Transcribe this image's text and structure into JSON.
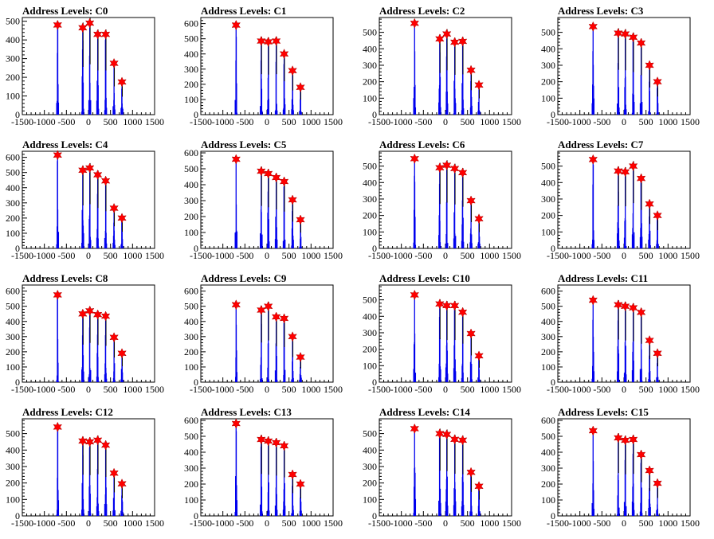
{
  "chart_data": [
    {
      "title": "Address Levels: C0",
      "type": "bar",
      "xlim": [
        -1500,
        1500
      ],
      "ylim": [
        0,
        520
      ],
      "xticks": [
        -1500,
        -1000,
        -500,
        0,
        500,
        1000,
        1500
      ],
      "xtick_labels": [
        "-1500",
        "-1000",
        "-500",
        "0",
        "500",
        "1000",
        "1500"
      ],
      "yticks": [
        0,
        100,
        200,
        300,
        400,
        500
      ],
      "ytick_labels": [
        "0",
        "100",
        "200",
        "300",
        "400",
        "500"
      ],
      "peaks": [
        {
          "x": -700,
          "y": 480
        },
        {
          "x": -130,
          "y": 465
        },
        {
          "x": 30,
          "y": 490
        },
        {
          "x": 210,
          "y": 430
        },
        {
          "x": 390,
          "y": 430
        },
        {
          "x": 580,
          "y": 275
        },
        {
          "x": 760,
          "y": 175
        }
      ]
    },
    {
      "title": "Address Levels: C1",
      "type": "bar",
      "xlim": [
        -1500,
        1500
      ],
      "ylim": [
        0,
        640
      ],
      "xticks": [
        -1500,
        -1000,
        -500,
        0,
        500,
        1000,
        1500
      ],
      "xtick_labels": [
        "-1500",
        "-1000",
        "-500",
        "0",
        "500",
        "1000",
        "1500"
      ],
      "yticks": [
        0,
        100,
        200,
        300,
        400,
        500,
        600
      ],
      "ytick_labels": [
        "0",
        "100",
        "200",
        "300",
        "400",
        "500",
        "600"
      ],
      "peaks": [
        {
          "x": -700,
          "y": 590
        },
        {
          "x": -130,
          "y": 485
        },
        {
          "x": 30,
          "y": 480
        },
        {
          "x": 210,
          "y": 485
        },
        {
          "x": 390,
          "y": 400
        },
        {
          "x": 580,
          "y": 290
        },
        {
          "x": 760,
          "y": 180
        }
      ]
    },
    {
      "title": "Address Levels: C2",
      "type": "bar",
      "xlim": [
        -1500,
        1500
      ],
      "ylim": [
        0,
        590
      ],
      "xticks": [
        -1500,
        -1000,
        -500,
        0,
        500,
        1000,
        1500
      ],
      "xtick_labels": [
        "-1500",
        "-1000",
        "-500",
        "0",
        "500",
        "1000",
        "1500"
      ],
      "yticks": [
        0,
        100,
        200,
        300,
        400,
        500
      ],
      "ytick_labels": [
        "0",
        "100",
        "200",
        "300",
        "400",
        "500"
      ],
      "peaks": [
        {
          "x": -700,
          "y": 555
        },
        {
          "x": -130,
          "y": 460
        },
        {
          "x": 30,
          "y": 490
        },
        {
          "x": 210,
          "y": 440
        },
        {
          "x": 390,
          "y": 445
        },
        {
          "x": 580,
          "y": 270
        },
        {
          "x": 760,
          "y": 180
        }
      ]
    },
    {
      "title": "Address Levels: C3",
      "type": "bar",
      "xlim": [
        -1500,
        1500
      ],
      "ylim": [
        0,
        590
      ],
      "xticks": [
        -1500,
        -1000,
        -500,
        0,
        500,
        1000,
        1500
      ],
      "xtick_labels": [
        "-1500",
        "-1000",
        "-500",
        "0",
        "500",
        "1000",
        "1500"
      ],
      "yticks": [
        0,
        100,
        200,
        300,
        400,
        500
      ],
      "ytick_labels": [
        "0",
        "100",
        "200",
        "300",
        "400",
        "500"
      ],
      "peaks": [
        {
          "x": -700,
          "y": 535
        },
        {
          "x": -130,
          "y": 495
        },
        {
          "x": 30,
          "y": 490
        },
        {
          "x": 210,
          "y": 470
        },
        {
          "x": 390,
          "y": 435
        },
        {
          "x": 580,
          "y": 300
        },
        {
          "x": 760,
          "y": 200
        }
      ]
    },
    {
      "title": "Address Levels: C4",
      "type": "bar",
      "xlim": [
        -1500,
        1500
      ],
      "ylim": [
        0,
        640
      ],
      "xticks": [
        -1500,
        -1000,
        -500,
        0,
        500,
        1000,
        1500
      ],
      "xtick_labels": [
        "-1500",
        "-1000",
        "-500",
        "0",
        "500",
        "1000",
        "1500"
      ],
      "yticks": [
        0,
        100,
        200,
        300,
        400,
        500,
        600
      ],
      "ytick_labels": [
        "0",
        "100",
        "200",
        "300",
        "400",
        "500",
        "600"
      ],
      "peaks": [
        {
          "x": -700,
          "y": 615
        },
        {
          "x": -130,
          "y": 515
        },
        {
          "x": 30,
          "y": 530
        },
        {
          "x": 210,
          "y": 485
        },
        {
          "x": 390,
          "y": 445
        },
        {
          "x": 580,
          "y": 265
        },
        {
          "x": 760,
          "y": 200
        }
      ]
    },
    {
      "title": "Address Levels: C5",
      "type": "bar",
      "xlim": [
        -1500,
        1500
      ],
      "ylim": [
        0,
        610
      ],
      "xticks": [
        -1500,
        -1000,
        -500,
        0,
        500,
        1000,
        1500
      ],
      "xtick_labels": [
        "-1500",
        "-1000",
        "-500",
        "0",
        "500",
        "1000",
        "1500"
      ],
      "yticks": [
        0,
        100,
        200,
        300,
        400,
        500,
        600
      ],
      "ytick_labels": [
        "0",
        "100",
        "200",
        "300",
        "400",
        "500",
        "600"
      ],
      "peaks": [
        {
          "x": -700,
          "y": 560
        },
        {
          "x": -130,
          "y": 485
        },
        {
          "x": 30,
          "y": 470
        },
        {
          "x": 210,
          "y": 445
        },
        {
          "x": 390,
          "y": 420
        },
        {
          "x": 580,
          "y": 305
        },
        {
          "x": 760,
          "y": 180
        }
      ]
    },
    {
      "title": "Address Levels: C6",
      "type": "bar",
      "xlim": [
        -1500,
        1500
      ],
      "ylim": [
        0,
        590
      ],
      "xticks": [
        -1500,
        -1000,
        -500,
        0,
        500,
        1000,
        1500
      ],
      "xtick_labels": [
        "-1500",
        "-1000",
        "-500",
        "0",
        "500",
        "1000",
        "1500"
      ],
      "yticks": [
        0,
        100,
        200,
        300,
        400,
        500
      ],
      "ytick_labels": [
        "0",
        "100",
        "200",
        "300",
        "400",
        "500"
      ],
      "peaks": [
        {
          "x": -700,
          "y": 545
        },
        {
          "x": -130,
          "y": 490
        },
        {
          "x": 30,
          "y": 505
        },
        {
          "x": 210,
          "y": 485
        },
        {
          "x": 390,
          "y": 460
        },
        {
          "x": 580,
          "y": 290
        },
        {
          "x": 760,
          "y": 180
        }
      ]
    },
    {
      "title": "Address Levels: C7",
      "type": "bar",
      "xlim": [
        -1500,
        1500
      ],
      "ylim": [
        0,
        590
      ],
      "xticks": [
        -1500,
        -1000,
        -500,
        0,
        500,
        1000,
        1500
      ],
      "xtick_labels": [
        "-1500",
        "-1000",
        "-500",
        "0",
        "500",
        "1000",
        "1500"
      ],
      "yticks": [
        0,
        100,
        200,
        300,
        400,
        500
      ],
      "ytick_labels": [
        "0",
        "100",
        "200",
        "300",
        "400",
        "500"
      ],
      "peaks": [
        {
          "x": -700,
          "y": 540
        },
        {
          "x": -130,
          "y": 470
        },
        {
          "x": 30,
          "y": 465
        },
        {
          "x": 210,
          "y": 500
        },
        {
          "x": 390,
          "y": 425
        },
        {
          "x": 580,
          "y": 270
        },
        {
          "x": 760,
          "y": 200
        }
      ]
    },
    {
      "title": "Address Levels: C8",
      "type": "bar",
      "xlim": [
        -1500,
        1500
      ],
      "ylim": [
        0,
        640
      ],
      "xticks": [
        -1500,
        -1000,
        -500,
        0,
        500,
        1000,
        1500
      ],
      "xtick_labels": [
        "-1500",
        "-1000",
        "-500",
        "0",
        "500",
        "1000",
        "1500"
      ],
      "yticks": [
        0,
        100,
        200,
        300,
        400,
        500,
        600
      ],
      "ytick_labels": [
        "0",
        "100",
        "200",
        "300",
        "400",
        "500",
        "600"
      ],
      "peaks": [
        {
          "x": -700,
          "y": 575
        },
        {
          "x": -130,
          "y": 450
        },
        {
          "x": 30,
          "y": 470
        },
        {
          "x": 210,
          "y": 445
        },
        {
          "x": 390,
          "y": 435
        },
        {
          "x": 580,
          "y": 295
        },
        {
          "x": 760,
          "y": 190
        }
      ]
    },
    {
      "title": "Address Levels: C9",
      "type": "bar",
      "xlim": [
        -1500,
        1500
      ],
      "ylim": [
        0,
        640
      ],
      "xticks": [
        -1500,
        -1000,
        -500,
        0,
        500,
        1000,
        1500
      ],
      "xtick_labels": [
        "-1500",
        "-1000",
        "-500",
        "0",
        "500",
        "1000",
        "1500"
      ],
      "yticks": [
        0,
        100,
        200,
        300,
        400,
        500,
        600
      ],
      "ytick_labels": [
        "0",
        "100",
        "200",
        "300",
        "400",
        "500",
        "600"
      ],
      "peaks": [
        {
          "x": -700,
          "y": 510
        },
        {
          "x": -130,
          "y": 475
        },
        {
          "x": 30,
          "y": 500
        },
        {
          "x": 210,
          "y": 430
        },
        {
          "x": 390,
          "y": 420
        },
        {
          "x": 580,
          "y": 300
        },
        {
          "x": 760,
          "y": 165
        }
      ]
    },
    {
      "title": "Address Levels: C10",
      "type": "bar",
      "xlim": [
        -1500,
        1500
      ],
      "ylim": [
        0,
        590
      ],
      "xticks": [
        -1500,
        -1000,
        -500,
        0,
        500,
        1000,
        1500
      ],
      "xtick_labels": [
        "-1500",
        "-1000",
        "-500",
        "0",
        "500",
        "1000",
        "1500"
      ],
      "yticks": [
        0,
        100,
        200,
        300,
        400,
        500
      ],
      "ytick_labels": [
        "0",
        "100",
        "200",
        "300",
        "400",
        "500"
      ],
      "peaks": [
        {
          "x": -700,
          "y": 530
        },
        {
          "x": -130,
          "y": 475
        },
        {
          "x": 30,
          "y": 465
        },
        {
          "x": 210,
          "y": 465
        },
        {
          "x": 390,
          "y": 425
        },
        {
          "x": 580,
          "y": 295
        },
        {
          "x": 760,
          "y": 160
        }
      ]
    },
    {
      "title": "Address Levels: C11",
      "type": "bar",
      "xlim": [
        -1500,
        1500
      ],
      "ylim": [
        0,
        640
      ],
      "xticks": [
        -1500,
        -1000,
        -500,
        0,
        500,
        1000,
        1500
      ],
      "xtick_labels": [
        "-1500",
        "-1000",
        "-500",
        "0",
        "500",
        "1000",
        "1500"
      ],
      "yticks": [
        0,
        100,
        200,
        300,
        400,
        500,
        600
      ],
      "ytick_labels": [
        "0",
        "100",
        "200",
        "300",
        "400",
        "500",
        "600"
      ],
      "peaks": [
        {
          "x": -700,
          "y": 540
        },
        {
          "x": -130,
          "y": 510
        },
        {
          "x": 30,
          "y": 500
        },
        {
          "x": 210,
          "y": 490
        },
        {
          "x": 390,
          "y": 460
        },
        {
          "x": 580,
          "y": 275
        },
        {
          "x": 760,
          "y": 190
        }
      ]
    },
    {
      "title": "Address Levels: C12",
      "type": "bar",
      "xlim": [
        -1500,
        1500
      ],
      "ylim": [
        0,
        590
      ],
      "xticks": [
        -1500,
        -1000,
        -500,
        0,
        500,
        1000,
        1500
      ],
      "xtick_labels": [
        "-1500",
        "-1000",
        "-500",
        "0",
        "500",
        "1000",
        "1500"
      ],
      "yticks": [
        0,
        100,
        200,
        300,
        400,
        500
      ],
      "ytick_labels": [
        "0",
        "100",
        "200",
        "300",
        "400",
        "500"
      ],
      "peaks": [
        {
          "x": -700,
          "y": 540
        },
        {
          "x": -130,
          "y": 455
        },
        {
          "x": 30,
          "y": 450
        },
        {
          "x": 210,
          "y": 460
        },
        {
          "x": 390,
          "y": 430
        },
        {
          "x": 580,
          "y": 260
        },
        {
          "x": 760,
          "y": 195
        }
      ]
    },
    {
      "title": "Address Levels: C13",
      "type": "bar",
      "xlim": [
        -1500,
        1500
      ],
      "ylim": [
        0,
        610
      ],
      "xticks": [
        -1500,
        -1000,
        -500,
        0,
        500,
        1000,
        1500
      ],
      "xtick_labels": [
        "-1500",
        "-1000",
        "-500",
        "0",
        "500",
        "1000",
        "1500"
      ],
      "yticks": [
        0,
        100,
        200,
        300,
        400,
        500,
        600
      ],
      "ytick_labels": [
        "0",
        "100",
        "200",
        "300",
        "400",
        "500",
        "600"
      ],
      "peaks": [
        {
          "x": -700,
          "y": 580
        },
        {
          "x": -130,
          "y": 480
        },
        {
          "x": 30,
          "y": 470
        },
        {
          "x": 210,
          "y": 460
        },
        {
          "x": 390,
          "y": 440
        },
        {
          "x": 580,
          "y": 260
        },
        {
          "x": 760,
          "y": 200
        }
      ]
    },
    {
      "title": "Address Levels: C14",
      "type": "bar",
      "xlim": [
        -1500,
        1500
      ],
      "ylim": [
        0,
        590
      ],
      "xticks": [
        -1500,
        -1000,
        -500,
        0,
        500,
        1000,
        1500
      ],
      "xtick_labels": [
        "-1500",
        "-1000",
        "-500",
        "0",
        "500",
        "1000",
        "1500"
      ],
      "yticks": [
        0,
        100,
        200,
        300,
        400,
        500
      ],
      "ytick_labels": [
        "0",
        "100",
        "200",
        "300",
        "400",
        "500"
      ],
      "peaks": [
        {
          "x": -700,
          "y": 530
        },
        {
          "x": -130,
          "y": 500
        },
        {
          "x": 30,
          "y": 495
        },
        {
          "x": 210,
          "y": 465
        },
        {
          "x": 390,
          "y": 460
        },
        {
          "x": 580,
          "y": 265
        },
        {
          "x": 760,
          "y": 180
        }
      ]
    },
    {
      "title": "Address Levels: C15",
      "type": "bar",
      "xlim": [
        -1500,
        1500
      ],
      "ylim": [
        0,
        610
      ],
      "xticks": [
        -1500,
        -1000,
        -500,
        0,
        500,
        1000,
        1500
      ],
      "xtick_labels": [
        "-1500",
        "-1000",
        "-500",
        "0",
        "500",
        "1000",
        "1500"
      ],
      "yticks": [
        0,
        100,
        200,
        300,
        400,
        500,
        600
      ],
      "ytick_labels": [
        "0",
        "100",
        "200",
        "300",
        "400",
        "500",
        "600"
      ],
      "peaks": [
        {
          "x": -700,
          "y": 535
        },
        {
          "x": -130,
          "y": 490
        },
        {
          "x": 30,
          "y": 475
        },
        {
          "x": 210,
          "y": 480
        },
        {
          "x": 390,
          "y": 385
        },
        {
          "x": 580,
          "y": 285
        },
        {
          "x": 760,
          "y": 205
        }
      ]
    }
  ],
  "colors": {
    "bar": "#0000ee",
    "marker": "#ff0000",
    "axis": "#000000",
    "background": "#ffffff"
  }
}
